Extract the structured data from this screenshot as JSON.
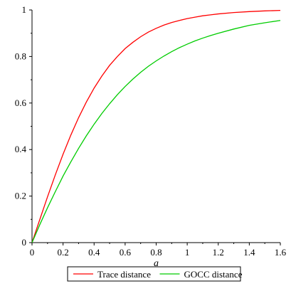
{
  "chart_data": {
    "type": "line",
    "xlabel": "a",
    "ylabel": "",
    "xlim": [
      0,
      1.6
    ],
    "ylim": [
      0,
      1
    ],
    "x_ticks": [
      "0",
      "0.2",
      "0.4",
      "0.6",
      "0.8",
      "1",
      "1.2",
      "1.4",
      "1.6"
    ],
    "y_ticks": [
      "0",
      "0.2",
      "0.4",
      "0.6",
      "0.8",
      "1"
    ],
    "grid": false,
    "legend_position": "bottom",
    "series": [
      {
        "name": "Trace distance",
        "color": "#ff0000",
        "x": [
          0,
          0.05,
          0.1,
          0.15,
          0.2,
          0.25,
          0.3,
          0.35,
          0.4,
          0.45,
          0.5,
          0.55,
          0.6,
          0.65,
          0.7,
          0.75,
          0.8,
          0.85,
          0.9,
          0.95,
          1.0,
          1.05,
          1.1,
          1.15,
          1.2,
          1.3,
          1.4,
          1.5,
          1.6
        ],
        "y": [
          0,
          0.099,
          0.197,
          0.291,
          0.38,
          0.462,
          0.537,
          0.604,
          0.664,
          0.716,
          0.762,
          0.8,
          0.834,
          0.861,
          0.885,
          0.905,
          0.921,
          0.935,
          0.946,
          0.955,
          0.963,
          0.969,
          0.975,
          0.979,
          0.983,
          0.989,
          0.993,
          0.996,
          0.998
        ]
      },
      {
        "name": "GOCC distance",
        "color": "#00cc00",
        "x": [
          0,
          0.05,
          0.1,
          0.15,
          0.2,
          0.25,
          0.3,
          0.35,
          0.4,
          0.45,
          0.5,
          0.55,
          0.6,
          0.65,
          0.7,
          0.75,
          0.8,
          0.85,
          0.9,
          0.95,
          1.0,
          1.05,
          1.1,
          1.15,
          1.2,
          1.3,
          1.4,
          1.5,
          1.6
        ],
        "y": [
          0,
          0.077,
          0.15,
          0.219,
          0.286,
          0.347,
          0.405,
          0.459,
          0.509,
          0.555,
          0.597,
          0.636,
          0.671,
          0.703,
          0.732,
          0.758,
          0.781,
          0.802,
          0.821,
          0.838,
          0.853,
          0.867,
          0.879,
          0.89,
          0.9,
          0.918,
          0.934,
          0.945,
          0.955
        ]
      }
    ]
  }
}
